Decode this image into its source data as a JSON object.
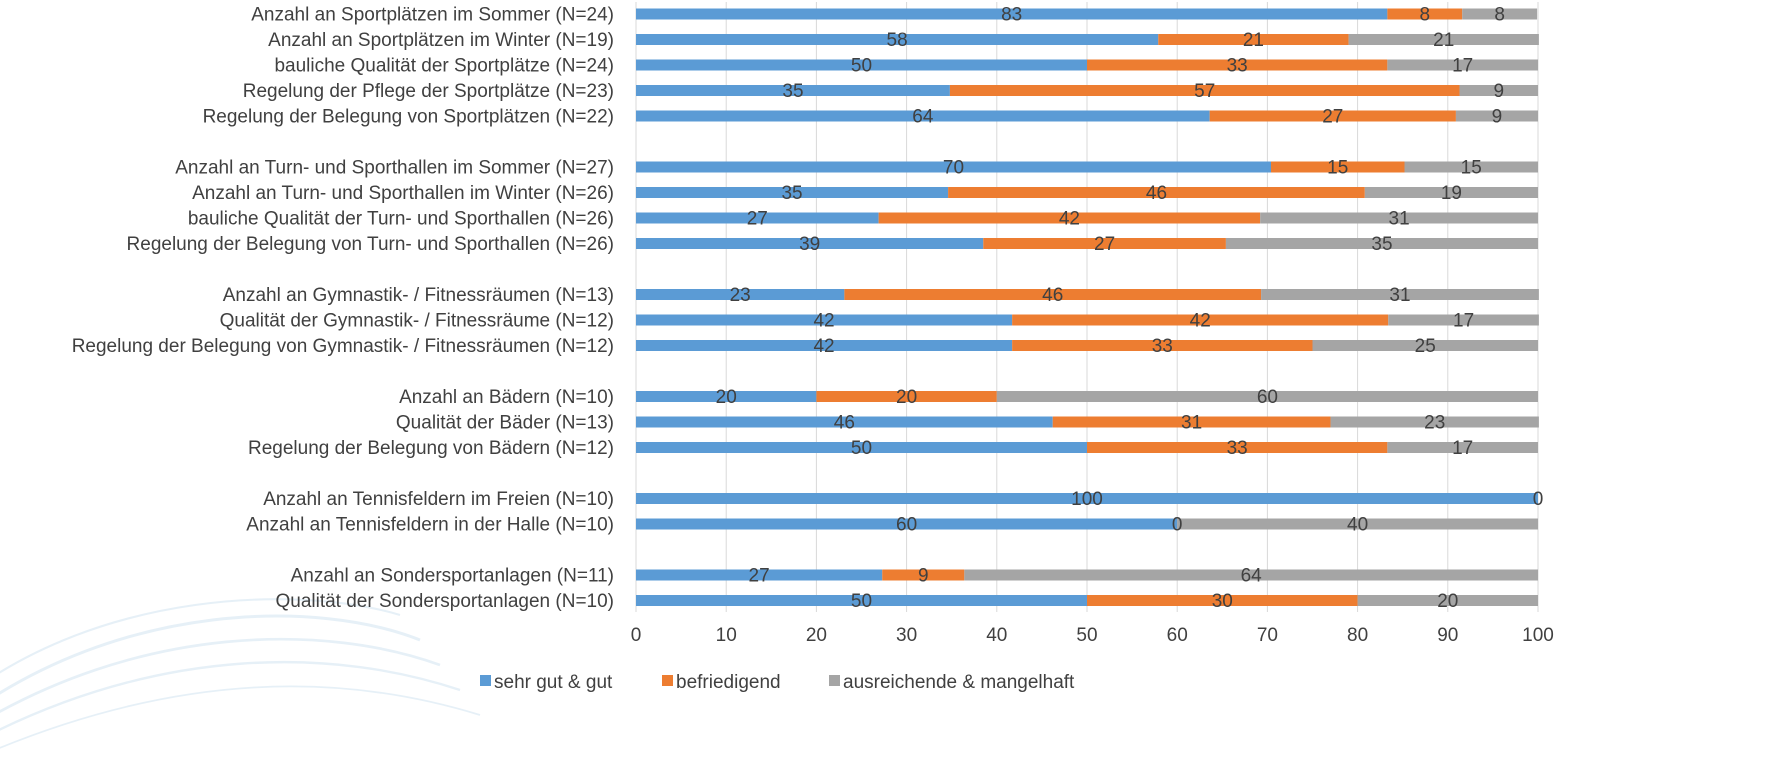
{
  "chart_data": {
    "type": "bar",
    "orientation": "horizontal",
    "stacked": true,
    "categories": [
      "Anzahl an Sportplätzen im Sommer (N=24)",
      "Anzahl an Sportplätzen im Winter (N=19)",
      "bauliche Qualität der Sportplätze (N=24)",
      "Regelung der Pflege der Sportplätze  (N=23)",
      "Regelung der Belegung von Sportplätzen (N=22)",
      "",
      "Anzahl an Turn- und Sporthallen im Sommer (N=27)",
      "Anzahl an Turn- und Sporthallen im Winter (N=26)",
      "bauliche Qualität der Turn- und Sporthallen (N=26)",
      "Regelung der Belegung von Turn- und Sporthallen (N=26)",
      "",
      "Anzahl an Gymnastik- / Fitnessräumen (N=13)",
      "Qualität der Gymnastik- / Fitnessräume (N=12)",
      "Regelung der Belegung von Gymnastik- / Fitnessräumen (N=12)",
      "",
      "Anzahl an Bädern (N=10)",
      "Qualität der Bäder (N=13)",
      "Regelung der Belegung von Bädern (N=12)",
      "",
      "Anzahl an Tennisfeldern im Freien (N=10)",
      "Anzahl an Tennisfeldern in der Halle (N=10)",
      "",
      "Anzahl an Sondersportanlagen (N=11)",
      "Qualität der Sondersportanlagen (N=10)"
    ],
    "series": [
      {
        "name": "sehr gut & gut",
        "color": "#5b9bd5",
        "values": [
          83.3,
          57.9,
          50,
          34.8,
          63.6,
          null,
          70.4,
          34.6,
          26.9,
          38.5,
          null,
          23.1,
          41.7,
          41.7,
          null,
          20,
          46.2,
          50,
          null,
          100,
          60,
          null,
          27.3,
          50
        ],
        "labels": [
          "83",
          "58",
          "50",
          "35",
          "64",
          "",
          "70",
          "35",
          "27",
          "39",
          "",
          "23",
          "42",
          "42",
          "",
          "20",
          "46",
          "50",
          "",
          "100",
          "60",
          "",
          "27",
          "50"
        ]
      },
      {
        "name": "befriedigend",
        "color": "#ed7d31",
        "values": [
          8.3,
          21.1,
          33.3,
          56.5,
          27.3,
          null,
          14.8,
          46.2,
          42.3,
          26.9,
          null,
          46.2,
          41.7,
          33.3,
          null,
          20,
          30.8,
          33.3,
          null,
          0,
          0,
          null,
          9.1,
          30
        ],
        "labels": [
          "8",
          "21",
          "33",
          "57",
          "27",
          "",
          "15",
          "46",
          "42",
          "27",
          "",
          "46",
          "42",
          "33",
          "",
          "20",
          "31",
          "33",
          "",
          "",
          "0",
          "",
          "9",
          "30"
        ]
      },
      {
        "name": "ausreichende & mangelhaft",
        "color": "#a5a5a5",
        "values": [
          8.3,
          21.1,
          16.7,
          8.7,
          9.1,
          null,
          14.8,
          19.2,
          30.8,
          34.6,
          null,
          30.8,
          16.7,
          25,
          null,
          60,
          23.1,
          16.7,
          null,
          0,
          40,
          null,
          63.6,
          20
        ],
        "labels": [
          "8",
          "21",
          "17",
          "9",
          "9",
          "",
          "15",
          "19",
          "31",
          "35",
          "",
          "31",
          "17",
          "25",
          "",
          "60",
          "23",
          "17",
          "",
          "0",
          "40",
          "",
          "64",
          "20"
        ]
      }
    ],
    "xlim": [
      0,
      100
    ],
    "xticks": [
      "0",
      "10",
      "20",
      "30",
      "40",
      "50",
      "60",
      "70",
      "80",
      "90",
      "100"
    ],
    "title": "",
    "xlabel": "",
    "ylabel": "",
    "grid": true,
    "legend_position": "bottom"
  }
}
